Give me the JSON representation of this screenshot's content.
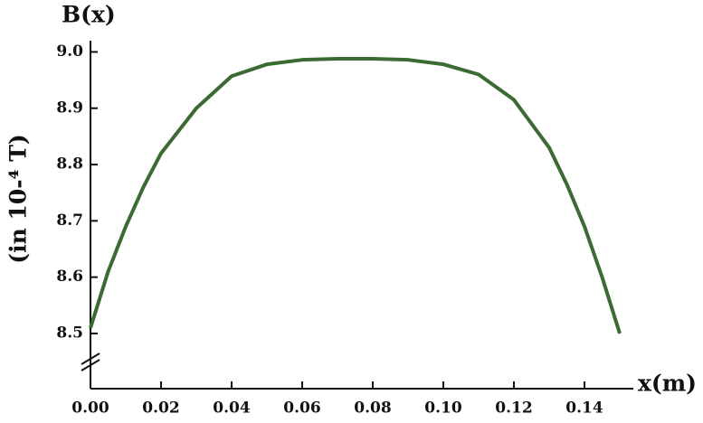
{
  "chart_data": {
    "type": "line",
    "ylabel_top": "B(x)",
    "ylabel": "(in 10-⁴ T)",
    "xlabel": "x(m)",
    "x": [
      0,
      0.005,
      0.01,
      0.015,
      0.02,
      0.03,
      0.04,
      0.05,
      0.06,
      0.07,
      0.08,
      0.09,
      0.1,
      0.11,
      0.12,
      0.13,
      0.135,
      0.14,
      0.145,
      0.15
    ],
    "series": [
      {
        "name": "B(x)",
        "color": "#3b6a33",
        "values": [
          8.51,
          8.61,
          8.69,
          8.76,
          8.82,
          8.9,
          8.957,
          8.978,
          8.986,
          8.988,
          8.988,
          8.986,
          8.978,
          8.96,
          8.915,
          8.83,
          8.765,
          8.69,
          8.6,
          8.5
        ]
      }
    ],
    "xlim": [
      0,
      0.15
    ],
    "ylim": [
      8.402,
      9.02
    ],
    "xticks": [
      {
        "value": 0,
        "label": "0.00"
      },
      {
        "value": 0.02,
        "label": "0.02"
      },
      {
        "value": 0.04,
        "label": "0.04"
      },
      {
        "value": 0.06,
        "label": "0.06"
      },
      {
        "value": 0.08,
        "label": "0.08"
      },
      {
        "value": 0.1,
        "label": "0.10"
      },
      {
        "value": 0.12,
        "label": "0.12"
      },
      {
        "value": 0.14,
        "label": "0.14"
      }
    ],
    "yticks": [
      8.5,
      8.6,
      8.7,
      8.8,
      8.9,
      {
        "value": 9,
        "label": "9.0"
      }
    ]
  }
}
